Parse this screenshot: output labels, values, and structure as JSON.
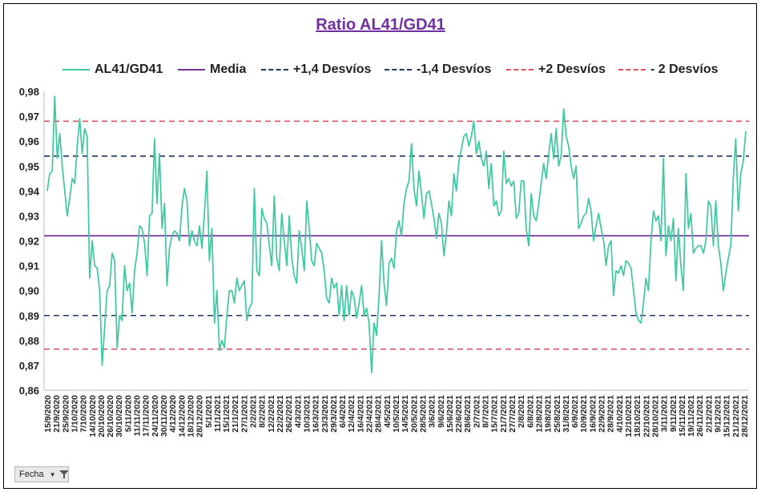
{
  "chart_data": {
    "type": "line",
    "title": "Ratio AL41/GD41",
    "xlabel": "",
    "ylabel": "",
    "ylim": [
      0.86,
      0.98
    ],
    "yticks": [
      "0,98",
      "0,97",
      "0,96",
      "0,95",
      "0,94",
      "0,93",
      "0,92",
      "0,91",
      "0,90",
      "0,89",
      "0,88",
      "0,87",
      "0,86"
    ],
    "grid": false,
    "legend_position": "top",
    "x_tick_labels": [
      "15/9/2020",
      "21/9/2020",
      "25/9/2020",
      "1/10/2020",
      "7/10/2020",
      "14/10/2020",
      "20/10/2020",
      "26/10/2020",
      "30/10/2020",
      "5/11/2020",
      "11/11/2020",
      "17/11/2020",
      "24/11/2020",
      "30/11/2020",
      "4/12/2020",
      "14/12/2020",
      "18/12/2020",
      "28/12/2020",
      "5/1/2021",
      "11/1/2021",
      "15/1/2021",
      "21/1/2021",
      "27/1/2021",
      "2/2/2021",
      "8/2/2021",
      "12/2/2021",
      "22/2/2021",
      "26/2/2021",
      "4/3/2021",
      "10/3/2021",
      "16/3/2021",
      "23/3/2021",
      "29/3/2021",
      "6/4/2021",
      "12/4/2021",
      "16/4/2021",
      "22/4/2021",
      "28/4/2021",
      "4/5/2021",
      "10/5/2021",
      "14/5/2021",
      "20/5/2021",
      "28/5/2021",
      "3/6/2021",
      "9/6/2021",
      "15/6/2021",
      "22/6/2021",
      "28/6/2021",
      "2/7/2021",
      "8/7/2021",
      "15/7/2021",
      "21/7/2021",
      "27/7/2021",
      "2/8/2021",
      "6/8/2021",
      "12/8/2021",
      "19/8/2021",
      "25/8/2021",
      "31/8/2021",
      "6/9/2021",
      "10/9/2021",
      "16/9/2021",
      "22/9/2021",
      "28/9/2021",
      "4/10/2021",
      "12/10/2021",
      "18/10/2021",
      "22/10/2021",
      "28/10/2021",
      "3/11/2021",
      "9/11/2021",
      "15/11/2021",
      "19/11/2021",
      "26/11/2021",
      "2/12/2021",
      "9/12/2021",
      "15/12/2021",
      "21/12/2021",
      "28/12/2021"
    ],
    "series": [
      {
        "name": "AL41/GD41",
        "color": "#3cc8a0",
        "style": "solid",
        "values": [
          0.94,
          0.947,
          0.948,
          0.978,
          0.953,
          0.963,
          0.95,
          0.94,
          0.93,
          0.937,
          0.945,
          0.943,
          0.958,
          0.969,
          0.955,
          0.965,
          0.962,
          0.905,
          0.92,
          0.91,
          0.909,
          0.9,
          0.87,
          0.885,
          0.9,
          0.902,
          0.915,
          0.912,
          0.877,
          0.89,
          0.888,
          0.91,
          0.9,
          0.903,
          0.891,
          0.908,
          0.915,
          0.926,
          0.925,
          0.919,
          0.906,
          0.93,
          0.931,
          0.961,
          0.935,
          0.955,
          0.925,
          0.935,
          0.902,
          0.917,
          0.922,
          0.924,
          0.923,
          0.92,
          0.934,
          0.941,
          0.936,
          0.918,
          0.924,
          0.92,
          0.918,
          0.926,
          0.917,
          0.931,
          0.948,
          0.912,
          0.925,
          0.887,
          0.9,
          0.876,
          0.88,
          0.877,
          0.89,
          0.9,
          0.9,
          0.895,
          0.905,
          0.9,
          0.902,
          0.904,
          0.888,
          0.893,
          0.895,
          0.941,
          0.908,
          0.906,
          0.933,
          0.929,
          0.927,
          0.918,
          0.91,
          0.938,
          0.913,
          0.908,
          0.931,
          0.92,
          0.91,
          0.93,
          0.913,
          0.906,
          0.903,
          0.924,
          0.917,
          0.908,
          0.936,
          0.925,
          0.912,
          0.91,
          0.919,
          0.917,
          0.915,
          0.908,
          0.897,
          0.895,
          0.905,
          0.901,
          0.903,
          0.89,
          0.902,
          0.888,
          0.902,
          0.89,
          0.9,
          0.897,
          0.889,
          0.895,
          0.902,
          0.89,
          0.893,
          0.887,
          0.867,
          0.887,
          0.882,
          0.898,
          0.92,
          0.903,
          0.894,
          0.911,
          0.913,
          0.909,
          0.924,
          0.928,
          0.922,
          0.935,
          0.941,
          0.944,
          0.959,
          0.941,
          0.934,
          0.948,
          0.939,
          0.929,
          0.939,
          0.94,
          0.935,
          0.929,
          0.921,
          0.931,
          0.927,
          0.914,
          0.923,
          0.936,
          0.93,
          0.947,
          0.94,
          0.952,
          0.957,
          0.962,
          0.963,
          0.958,
          0.962,
          0.968,
          0.955,
          0.96,
          0.953,
          0.95,
          0.956,
          0.941,
          0.951,
          0.934,
          0.936,
          0.93,
          0.932,
          0.956,
          0.943,
          0.945,
          0.942,
          0.944,
          0.929,
          0.931,
          0.944,
          0.944,
          0.925,
          0.918,
          0.939,
          0.93,
          0.928,
          0.935,
          0.943,
          0.951,
          0.945,
          0.955,
          0.963,
          0.953,
          0.965,
          0.95,
          0.954,
          0.973,
          0.962,
          0.958,
          0.95,
          0.945,
          0.95,
          0.925,
          0.927,
          0.93,
          0.931,
          0.937,
          0.932,
          0.92,
          0.926,
          0.931,
          0.925,
          0.92,
          0.91,
          0.918,
          0.92,
          0.898,
          0.908,
          0.907,
          0.91,
          0.906,
          0.912,
          0.911,
          0.909,
          0.9,
          0.891,
          0.888,
          0.887,
          0.895,
          0.905,
          0.9,
          0.92,
          0.932,
          0.928,
          0.93,
          0.92,
          0.953,
          0.914,
          0.926,
          0.92,
          0.929,
          0.904,
          0.925,
          0.91,
          0.9,
          0.947,
          0.925,
          0.931,
          0.915,
          0.917,
          0.918,
          0.918,
          0.915,
          0.92,
          0.936,
          0.934,
          0.918,
          0.936,
          0.918,
          0.911,
          0.9,
          0.907,
          0.913,
          0.918,
          0.945,
          0.961,
          0.932,
          0.947,
          0.952,
          0.964
        ]
      },
      {
        "name": "Media",
        "color": "#7030a0",
        "style": "solid",
        "value": 0.922
      },
      {
        "name": "+1,4 Desvíos",
        "color": "#1f3864",
        "style": "dashed",
        "value": 0.954
      },
      {
        "name": "-1,4 Desvíos",
        "color": "#1f3864",
        "style": "dashed",
        "value": 0.89
      },
      {
        "name": "+2 Desvíos",
        "color": "#e05060",
        "style": "dashed",
        "value": 0.968
      },
      {
        "name": "- 2 Desvíos",
        "color": "#e05060",
        "style": "dashed",
        "value": 0.8765
      }
    ]
  },
  "filter_button": {
    "label": "Fecha"
  }
}
